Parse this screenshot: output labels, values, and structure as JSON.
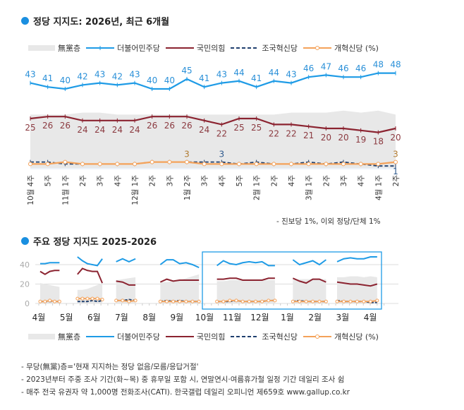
{
  "colors": {
    "nopart": "#e8e8e8",
    "dem": "#1e9be6",
    "ppp": "#8b2330",
    "rebuild": "#1f3f6e",
    "reform": "#f4a25a",
    "accent": "#1a8fe0"
  },
  "legend": {
    "nopart": "無黨층",
    "dem": "더불어민주당",
    "ppp": "국민의힘",
    "rebuild": "조국혁신당",
    "reform": "개혁신당 (%)"
  },
  "notes": {
    "top_footnote": "- 진보당 1%, 이외 정당/단체 1%",
    "lines": [
      "- 무당(無黨)층='현재 지지하는 정당 없음/모름/응답거절'",
      "- 2023년부터 주중 조사 기간(화~목) 중 휴무일 포함 시, 연말연시·여름휴가철 일정 기간 데일리 조사 쉼",
      "- 매주 전국 유권자 약 1,000명 전화조사(CATI). 한국갤럽 데일리 오피니언 제659호 www.gallup.co.kr"
    ]
  },
  "chart_data": [
    {
      "type": "line",
      "title": "정당 지지도: 2026년, 최근 6개월",
      "categories": [
        "10월 4주",
        "5주",
        "11월 1주",
        "2주",
        "3주",
        "4주",
        "12월 1주",
        "2주",
        "3주",
        "1월 2주",
        "3주",
        "4주",
        "5주",
        "2월 1주",
        "2주",
        "4주",
        "3월 1주",
        "2주",
        "3주",
        "4주",
        "4월 1주",
        "2주"
      ],
      "series": [
        {
          "name": "無黨층",
          "type": "area",
          "values": [
            27,
            27,
            27,
            28,
            28,
            27,
            27,
            27,
            27,
            27,
            27,
            27,
            27,
            27,
            27,
            28,
            28,
            28,
            29,
            28,
            29,
            27
          ]
        },
        {
          "name": "더불어민주당",
          "values": [
            43,
            41,
            40,
            42,
            43,
            42,
            43,
            40,
            40,
            45,
            41,
            43,
            44,
            41,
            44,
            43,
            46,
            47,
            46,
            46,
            48,
            48
          ],
          "labels": true
        },
        {
          "name": "국민의힘",
          "values": [
            25,
            26,
            26,
            24,
            24,
            24,
            24,
            26,
            26,
            26,
            24,
            22,
            25,
            25,
            22,
            22,
            21,
            20,
            20,
            19,
            18,
            20
          ],
          "labels": true
        },
        {
          "name": "조국혁신당",
          "values": [
            3,
            3,
            2,
            2,
            2,
            2,
            2,
            3,
            3,
            3,
            3,
            3,
            2,
            3,
            2,
            2,
            3,
            2,
            3,
            2,
            1,
            1
          ],
          "labelled": {
            "11": "3",
            "21": "1"
          }
        },
        {
          "name": "개혁신당",
          "values": [
            2,
            2,
            3,
            2,
            2,
            2,
            2,
            3,
            3,
            3,
            2,
            2,
            2,
            2,
            2,
            2,
            2,
            2,
            2,
            2,
            2,
            3
          ],
          "labelled": {
            "9": "3",
            "21": "3"
          }
        }
      ]
    },
    {
      "type": "line",
      "title": "주요 정당 지지도 2025-2026",
      "y_ticks": [
        "0",
        "20",
        "40"
      ],
      "ylim": [
        0,
        48
      ],
      "x_months": [
        "4월",
        "5월",
        "6월",
        "7월",
        "8월",
        "9월",
        "10월",
        "11월",
        "12월",
        "1월",
        "2월",
        "3월",
        "4월"
      ],
      "highlight": "10월–4월",
      "segments": [
        {
          "start": 0.05,
          "end": 0.75,
          "dem": [
            41,
            41,
            42,
            42,
            42
          ],
          "ppp": [
            33,
            30,
            33,
            34,
            34
          ],
          "nopart": [
            21,
            20,
            19,
            18,
            17
          ],
          "rebuild": [
            2,
            2,
            2,
            2,
            2
          ],
          "reform": [
            2,
            2,
            3,
            2,
            2
          ]
        },
        {
          "start": 1.4,
          "end": 2.3,
          "dem": [
            48,
            44,
            41,
            40,
            39,
            46
          ],
          "ppp": [
            30,
            36,
            34,
            33,
            33,
            21
          ],
          "nopart": [
            14,
            14,
            15,
            17,
            19,
            21
          ],
          "rebuild": [
            2,
            2,
            2,
            3,
            2,
            3
          ],
          "reform": [
            5,
            5,
            5,
            5,
            5,
            4
          ]
        },
        {
          "start": 2.8,
          "end": 3.5,
          "dem": [
            43,
            46,
            43,
            46
          ],
          "ppp": [
            23,
            22,
            19,
            19
          ],
          "nopart": [
            24,
            25,
            26,
            27
          ],
          "rebuild": [
            3,
            3,
            4,
            3
          ],
          "reform": [
            3,
            3,
            2,
            3
          ]
        },
        {
          "start": 4.4,
          "end": 5.8,
          "dem": [
            40,
            45,
            45,
            41,
            42,
            40,
            37
          ],
          "ppp": [
            22,
            25,
            23,
            24,
            24,
            24,
            24
          ],
          "nopart": [
            22,
            22,
            23,
            24,
            26,
            28,
            30
          ],
          "rebuild": [
            2,
            3,
            2,
            3,
            2,
            2,
            2
          ],
          "reform": [
            2,
            2,
            2,
            2,
            2,
            2,
            2
          ]
        },
        {
          "start": 6.45,
          "end": 8.55,
          "dem": [
            39,
            44,
            41,
            40,
            42,
            43,
            42,
            43,
            39,
            39
          ],
          "ppp": [
            25,
            25,
            26,
            26,
            24,
            24,
            24,
            24,
            26,
            26
          ],
          "nopart": [
            23,
            23,
            24,
            24,
            24,
            24,
            24,
            24,
            24,
            24
          ],
          "rebuild": [
            2,
            2,
            2,
            3,
            2,
            2,
            2,
            2,
            3,
            3
          ],
          "reform": [
            2,
            2,
            3,
            3,
            2,
            2,
            2,
            2,
            3,
            3
          ]
        },
        {
          "start": 9.2,
          "end": 10.4,
          "dem": [
            45,
            40,
            42,
            44,
            40,
            45
          ],
          "ppp": [
            26,
            23,
            21,
            25,
            25,
            22
          ],
          "nopart": [
            25,
            25,
            25,
            25,
            25,
            25
          ],
          "rebuild": [
            2,
            3,
            2,
            2,
            2,
            2
          ],
          "reform": [
            2,
            2,
            2,
            2,
            2,
            2
          ]
        },
        {
          "start": 10.8,
          "end": 12.25,
          "dem": [
            43,
            46,
            47,
            46,
            46,
            48,
            48
          ],
          "ppp": [
            22,
            21,
            20,
            20,
            19,
            18,
            20
          ],
          "nopart": [
            27,
            27,
            28,
            28,
            27,
            28,
            27
          ],
          "rebuild": [
            3,
            2,
            2,
            2,
            2,
            1,
            1
          ],
          "reform": [
            2,
            2,
            2,
            2,
            2,
            2,
            3
          ]
        }
      ]
    }
  ]
}
